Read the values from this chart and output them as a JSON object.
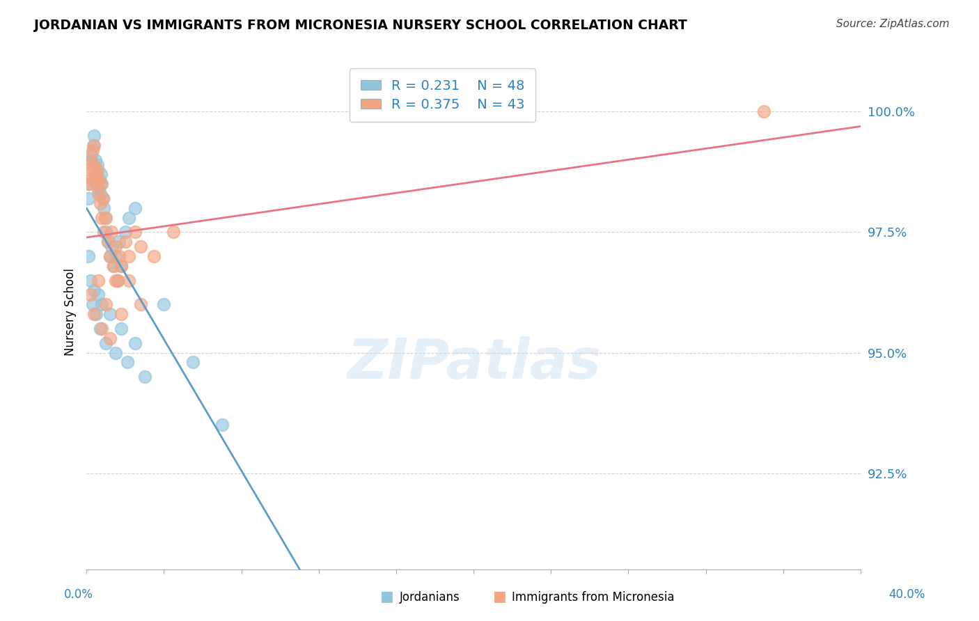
{
  "title": "JORDANIAN VS IMMIGRANTS FROM MICRONESIA NURSERY SCHOOL CORRELATION CHART",
  "source": "Source: ZipAtlas.com",
  "ylabel": "Nursery School",
  "xlim": [
    0.0,
    40.0
  ],
  "ylim": [
    90.5,
    101.2
  ],
  "yticks": [
    92.5,
    95.0,
    97.5,
    100.0
  ],
  "ytick_labels": [
    "92.5%",
    "95.0%",
    "97.5%",
    "100.0%"
  ],
  "legend_R1": "R = 0.231",
  "legend_N1": "N = 48",
  "legend_R2": "R = 0.375",
  "legend_N2": "N = 43",
  "blue_color": "#92c5de",
  "pink_color": "#f4a582",
  "blue_line_color": "#5a9dc8",
  "pink_line_color": "#e8748a",
  "text_color": "#3182bd",
  "background_color": "#ffffff",
  "jordanians_x": [
    0.1,
    0.15,
    0.2,
    0.25,
    0.3,
    0.35,
    0.4,
    0.45,
    0.5,
    0.55,
    0.6,
    0.65,
    0.7,
    0.75,
    0.8,
    0.85,
    0.9,
    0.95,
    1.0,
    1.1,
    1.2,
    1.3,
    1.4,
    1.5,
    1.6,
    1.7,
    1.8,
    2.0,
    2.2,
    2.5,
    0.1,
    0.2,
    0.3,
    0.4,
    0.5,
    0.6,
    0.7,
    0.8,
    1.0,
    1.2,
    1.5,
    1.8,
    2.1,
    2.5,
    3.0,
    4.0,
    5.5,
    7.0
  ],
  "jordanians_y": [
    98.2,
    98.5,
    99.0,
    99.1,
    98.8,
    99.3,
    99.5,
    99.0,
    98.7,
    98.9,
    98.4,
    98.6,
    98.3,
    98.7,
    98.5,
    98.2,
    98.0,
    97.8,
    97.5,
    97.3,
    97.0,
    97.2,
    96.8,
    97.0,
    96.5,
    97.3,
    96.8,
    97.5,
    97.8,
    98.0,
    97.0,
    96.5,
    96.0,
    96.3,
    95.8,
    96.2,
    95.5,
    96.0,
    95.2,
    95.8,
    95.0,
    95.5,
    94.8,
    95.2,
    94.5,
    96.0,
    94.8,
    93.5
  ],
  "micronesia_x": [
    0.1,
    0.15,
    0.2,
    0.25,
    0.3,
    0.35,
    0.4,
    0.45,
    0.5,
    0.55,
    0.6,
    0.65,
    0.7,
    0.75,
    0.8,
    0.85,
    0.9,
    1.0,
    1.1,
    1.2,
    1.3,
    1.4,
    1.5,
    1.6,
    1.7,
    1.8,
    2.0,
    2.2,
    2.5,
    2.8,
    0.2,
    0.4,
    0.6,
    0.8,
    1.0,
    1.2,
    1.5,
    1.8,
    2.2,
    2.8,
    3.5,
    4.5,
    35.0
  ],
  "micronesia_y": [
    98.5,
    98.8,
    99.0,
    98.6,
    99.2,
    98.9,
    99.3,
    98.7,
    98.5,
    98.8,
    98.3,
    98.6,
    98.1,
    98.5,
    97.8,
    98.2,
    97.5,
    97.8,
    97.3,
    97.0,
    97.5,
    96.8,
    97.2,
    96.5,
    97.0,
    96.8,
    97.3,
    97.0,
    97.5,
    97.2,
    96.2,
    95.8,
    96.5,
    95.5,
    96.0,
    95.3,
    96.5,
    95.8,
    96.5,
    96.0,
    97.0,
    97.5,
    100.0
  ]
}
